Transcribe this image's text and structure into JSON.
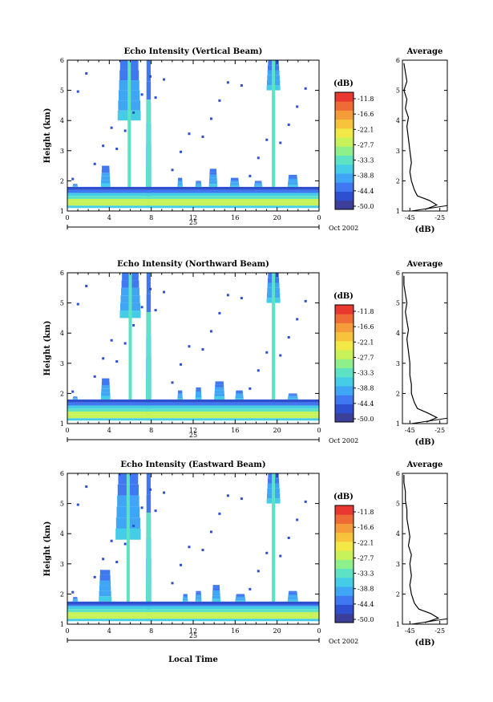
{
  "figure": {
    "xlabel": "Local Time",
    "date_label": "Oct 2002",
    "day_label": "25"
  },
  "chart_data": [
    {
      "type": "heatmap",
      "title": "Echo Intensity (Vertical Beam)",
      "xlabel": "Local Time",
      "ylabel": "Height (km)",
      "x_ticks": [
        "0",
        "4",
        "8",
        "12",
        "16",
        "20",
        "0"
      ],
      "y_ticks": [
        "1",
        "2",
        "3",
        "4",
        "5",
        "6"
      ],
      "xlim": [
        0,
        24
      ],
      "ylim": [
        1,
        6
      ],
      "colorbar": {
        "unit": "(dB)",
        "ticks": [
          "-11.8",
          "-16.6",
          "-22.1",
          "-27.7",
          "-33.3",
          "-38.8",
          "-44.4",
          "-50.0"
        ],
        "range": [
          -50.0,
          -11.8
        ],
        "colors": [
          "#3b3f9a",
          "#2e4fd0",
          "#3f78f0",
          "#3fa6f5",
          "#45cde8",
          "#5de3c4",
          "#8ef08a",
          "#c7f25a",
          "#f2e947",
          "#f7c33d",
          "#f49b3a",
          "#ef6b36",
          "#e8382f"
        ]
      },
      "plumes": [
        {
          "x": [
            0.5,
            1.0
          ],
          "top": 1.9
        },
        {
          "x": [
            3.2,
            4.1
          ],
          "top": 2.5
        },
        {
          "x": [
            4.8,
            7.0
          ],
          "top": 6.0,
          "upper_only_from": 4.0
        },
        {
          "x": [
            7.5,
            8.0
          ],
          "top": 6.0
        },
        {
          "x": [
            10.5,
            11.0
          ],
          "top": 2.1
        },
        {
          "x": [
            12.2,
            12.8
          ],
          "top": 2.0
        },
        {
          "x": [
            13.5,
            14.3
          ],
          "top": 2.4
        },
        {
          "x": [
            15.5,
            16.4
          ],
          "top": 2.1
        },
        {
          "x": [
            17.8,
            18.6
          ],
          "top": 2.0
        },
        {
          "x": [
            19.0,
            20.3
          ],
          "top": 6.0,
          "upper_only_from": 5.0
        },
        {
          "x": [
            21.0,
            22.0
          ],
          "top": 2.2
        }
      ],
      "base_layer": [
        1.1,
        1.8
      ],
      "average_profile": {
        "title": "Average",
        "xlabel": "(dB)",
        "x_ticks": [
          "-45",
          "-25"
        ],
        "xlim": [
          -50,
          -20
        ],
        "y_ticks": [
          "1",
          "2",
          "3",
          "4",
          "5",
          "6"
        ],
        "ylim": [
          1,
          6
        ],
        "height_km": [
          1.05,
          1.2,
          1.35,
          1.5,
          1.7,
          2.0,
          2.3,
          2.6,
          3.0,
          3.4,
          3.8,
          4.1,
          4.4,
          4.7,
          5.0,
          5.3,
          5.6,
          5.9
        ],
        "value_db": [
          -35,
          -27,
          -32,
          -40,
          -42,
          -44,
          -45,
          -44,
          -45,
          -46,
          -47,
          -46,
          -48,
          -47,
          -49,
          -47,
          -48,
          -49
        ]
      }
    },
    {
      "type": "heatmap",
      "title": "Echo Intensity (Northward Beam)",
      "xlabel": "Local Time",
      "ylabel": "Height (km)",
      "x_ticks": [
        "0",
        "4",
        "8",
        "12",
        "16",
        "20",
        "0"
      ],
      "y_ticks": [
        "1",
        "2",
        "3",
        "4",
        "5",
        "6"
      ],
      "xlim": [
        0,
        24
      ],
      "ylim": [
        1,
        6
      ],
      "colorbar": {
        "unit": "(dB)",
        "ticks": [
          "-11.8",
          "-16.6",
          "-22.1",
          "-27.7",
          "-33.3",
          "-38.8",
          "-44.4",
          "-50.0"
        ],
        "range": [
          -50.0,
          -11.8
        ],
        "colors": [
          "#3b3f9a",
          "#2e4fd0",
          "#3f78f0",
          "#3fa6f5",
          "#45cde8",
          "#5de3c4",
          "#8ef08a",
          "#c7f25a",
          "#f2e947",
          "#f7c33d",
          "#f49b3a",
          "#ef6b36",
          "#e8382f"
        ]
      },
      "plumes": [
        {
          "x": [
            0.5,
            1.0
          ],
          "top": 1.9
        },
        {
          "x": [
            3.2,
            4.1
          ],
          "top": 2.5
        },
        {
          "x": [
            5.0,
            7.0
          ],
          "top": 6.0,
          "upper_only_from": 4.5
        },
        {
          "x": [
            7.5,
            8.0
          ],
          "top": 6.0
        },
        {
          "x": [
            10.5,
            11.0
          ],
          "top": 2.1
        },
        {
          "x": [
            12.2,
            12.8
          ],
          "top": 2.2
        },
        {
          "x": [
            14.0,
            15.0
          ],
          "top": 2.4
        },
        {
          "x": [
            16.0,
            16.8
          ],
          "top": 2.1
        },
        {
          "x": [
            19.0,
            20.3
          ],
          "top": 6.0,
          "upper_only_from": 5.0
        },
        {
          "x": [
            21.0,
            22.0
          ],
          "top": 2.0
        }
      ],
      "base_layer": [
        1.1,
        1.8
      ],
      "average_profile": {
        "title": "Average",
        "xlabel": "(dB)",
        "x_ticks": [
          "-45",
          "-25"
        ],
        "xlim": [
          -50,
          -20
        ],
        "y_ticks": [
          "1",
          "2",
          "3",
          "4",
          "5",
          "6"
        ],
        "ylim": [
          1,
          6
        ],
        "height_km": [
          1.05,
          1.2,
          1.35,
          1.5,
          1.7,
          2.0,
          2.3,
          2.6,
          3.0,
          3.4,
          3.8,
          4.1,
          4.4,
          4.7,
          5.0,
          5.3,
          5.6,
          5.9
        ],
        "value_db": [
          -34,
          -27,
          -33,
          -40,
          -42,
          -44,
          -44,
          -45,
          -45,
          -46,
          -47,
          -46,
          -47,
          -48,
          -47,
          -48,
          -49,
          -49
        ]
      }
    },
    {
      "type": "heatmap",
      "title": "Echo Intensity (Eastward Beam)",
      "xlabel": "Local Time",
      "ylabel": "Height (km)",
      "x_ticks": [
        "0",
        "4",
        "8",
        "12",
        "16",
        "20",
        "0"
      ],
      "y_ticks": [
        "1",
        "2",
        "3",
        "4",
        "5",
        "6"
      ],
      "xlim": [
        0,
        24
      ],
      "ylim": [
        1,
        6
      ],
      "colorbar": {
        "unit": "(dB)",
        "ticks": [
          "-11.8",
          "-16.6",
          "-22.1",
          "-27.7",
          "-33.3",
          "-38.8",
          "-44.4",
          "-50.0"
        ],
        "range": [
          -50.0,
          -11.8
        ],
        "colors": [
          "#3b3f9a",
          "#2e4fd0",
          "#3f78f0",
          "#3fa6f5",
          "#45cde8",
          "#5de3c4",
          "#8ef08a",
          "#c7f25a",
          "#f2e947",
          "#f7c33d",
          "#f49b3a",
          "#ef6b36",
          "#e8382f"
        ]
      },
      "plumes": [
        {
          "x": [
            0.5,
            1.0
          ],
          "top": 1.9
        },
        {
          "x": [
            3.0,
            4.2
          ],
          "top": 2.8
        },
        {
          "x": [
            4.6,
            7.0
          ],
          "top": 6.0,
          "upper_only_from": 3.8
        },
        {
          "x": [
            7.5,
            8.0
          ],
          "top": 6.0
        },
        {
          "x": [
            11.0,
            11.5
          ],
          "top": 2.0
        },
        {
          "x": [
            12.2,
            12.8
          ],
          "top": 2.1
        },
        {
          "x": [
            13.8,
            14.6
          ],
          "top": 2.3
        },
        {
          "x": [
            16.0,
            17.0
          ],
          "top": 2.0
        },
        {
          "x": [
            19.0,
            20.3
          ],
          "top": 6.0,
          "upper_only_from": 5.0
        },
        {
          "x": [
            21.0,
            22.0
          ],
          "top": 2.1
        }
      ],
      "base_layer": [
        1.1,
        1.75
      ],
      "average_profile": {
        "title": "Average",
        "xlabel": "(dB)",
        "x_ticks": [
          "-45",
          "-25"
        ],
        "xlim": [
          -50,
          -20
        ],
        "y_ticks": [
          "1",
          "2",
          "3",
          "4",
          "5",
          "6"
        ],
        "ylim": [
          1,
          6
        ],
        "height_km": [
          1.05,
          1.2,
          1.35,
          1.5,
          1.7,
          2.0,
          2.3,
          2.6,
          3.0,
          3.3,
          3.6,
          3.9,
          4.2,
          4.5,
          4.8,
          5.1,
          5.4,
          5.7,
          5.95
        ],
        "value_db": [
          -35,
          -26,
          -31,
          -39,
          -42,
          -44,
          -45,
          -44,
          -45,
          -44,
          -46,
          -45,
          -46,
          -47,
          -47,
          -48,
          -48,
          -49,
          -49
        ]
      }
    }
  ]
}
